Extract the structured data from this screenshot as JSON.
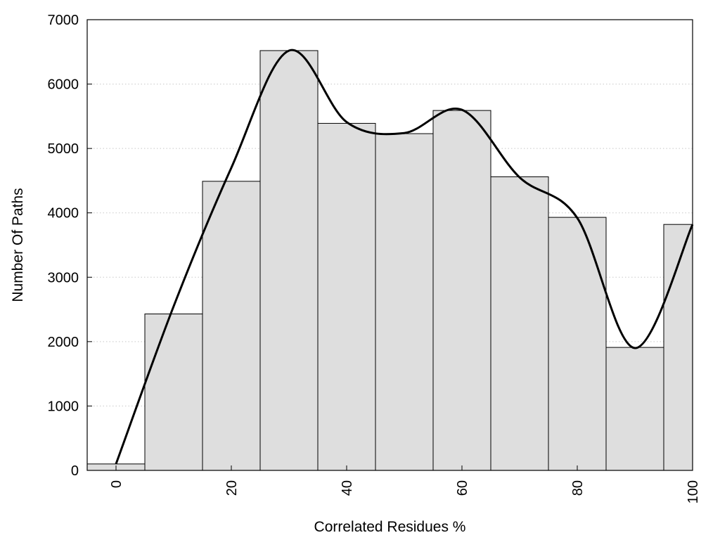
{
  "chart_data": {
    "type": "bar",
    "xlabel": "Correlated Residues %",
    "ylabel": "Number Of Paths",
    "xlim": [
      -5,
      100
    ],
    "ylim": [
      0,
      7000
    ],
    "x_ticks": [
      0,
      20,
      40,
      60,
      80,
      100
    ],
    "y_ticks": [
      0,
      1000,
      2000,
      3000,
      4000,
      5000,
      6000,
      7000
    ],
    "grid": "horizontal dotted",
    "bar_color": "#dedede",
    "bars": [
      {
        "x": 0,
        "value": 100
      },
      {
        "x": 10,
        "value": 2430
      },
      {
        "x": 20,
        "value": 4490
      },
      {
        "x": 30,
        "value": 6520
      },
      {
        "x": 40,
        "value": 5390
      },
      {
        "x": 50,
        "value": 5230
      },
      {
        "x": 60,
        "value": 5590
      },
      {
        "x": 70,
        "value": 4560
      },
      {
        "x": 80,
        "value": 3930
      },
      {
        "x": 90,
        "value": 1910
      },
      {
        "x": 100,
        "value": 3820
      }
    ],
    "curve": {
      "color": "#000000",
      "points": [
        {
          "x": 0,
          "y": 100
        },
        {
          "x": 10,
          "y": 2550
        },
        {
          "x": 20,
          "y": 4700
        },
        {
          "x": 30,
          "y": 6520
        },
        {
          "x": 40,
          "y": 5410
        },
        {
          "x": 50,
          "y": 5240
        },
        {
          "x": 60,
          "y": 5600
        },
        {
          "x": 70,
          "y": 4550
        },
        {
          "x": 80,
          "y": 3920
        },
        {
          "x": 90,
          "y": 1900
        },
        {
          "x": 100,
          "y": 3820
        }
      ]
    }
  }
}
